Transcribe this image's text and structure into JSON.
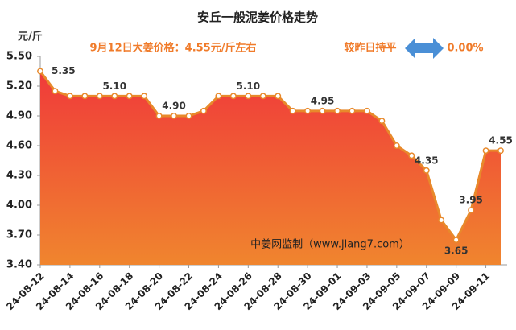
{
  "chart_data": {
    "type": "area",
    "title": "安丘一般泥姜价格走势",
    "y_label": "元/斤",
    "annotations": [
      "9月12日大姜价格：4.55元/斤左右",
      "较昨日持平",
      "0.00%"
    ],
    "watermark": "中姜网监制（www.jiang7.com）",
    "categories": [
      "24-08-12",
      null,
      "24-08-14",
      null,
      "24-08-16",
      null,
      "24-08-18",
      null,
      "24-08-20",
      null,
      "24-08-22",
      null,
      "24-08-24",
      null,
      "24-08-26",
      null,
      "24-08-28",
      null,
      "24-08-30",
      null,
      "24-09-01",
      null,
      "24-09-03",
      null,
      "24-09-05",
      null,
      "24-09-07",
      null,
      "24-09-09",
      null,
      "24-09-11",
      null
    ],
    "values": [
      5.35,
      5.15,
      5.1,
      5.1,
      5.1,
      5.1,
      5.1,
      5.1,
      4.9,
      4.9,
      4.9,
      4.95,
      5.1,
      5.1,
      5.1,
      5.1,
      5.1,
      4.95,
      4.95,
      4.95,
      4.95,
      4.95,
      4.95,
      4.85,
      4.6,
      4.5,
      4.35,
      3.85,
      3.65,
      3.95,
      4.55,
      4.55
    ],
    "value_labels": [
      "5.35",
      null,
      null,
      null,
      null,
      "5.10",
      null,
      null,
      null,
      "4.90",
      null,
      null,
      null,
      null,
      "5.10",
      null,
      null,
      null,
      null,
      "4.95",
      null,
      null,
      null,
      null,
      null,
      null,
      "4.35",
      null,
      "3.65",
      "3.95",
      null,
      "4.55"
    ],
    "color": "#e8892b",
    "fill_top": "#f03a3a",
    "fill_bottom": "#f0852e",
    "ylim": [
      3.4,
      5.5
    ],
    "yticks": [
      {
        "value": 3.4,
        "label": "3.40"
      },
      {
        "value": 3.7,
        "label": "3.70"
      },
      {
        "value": 4.0,
        "label": "4.00"
      },
      {
        "value": 4.3,
        "label": "4.30"
      },
      {
        "value": 4.6,
        "label": "4.60"
      },
      {
        "value": 4.9,
        "label": "4.90"
      },
      {
        "value": 5.2,
        "label": "5.20"
      },
      {
        "value": 5.5,
        "label": "5.50"
      }
    ],
    "grid": false
  }
}
